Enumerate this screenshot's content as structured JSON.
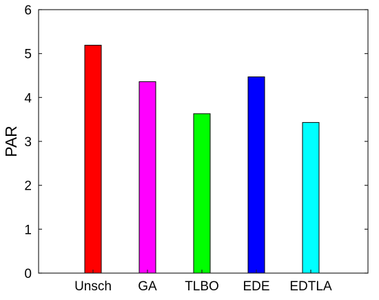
{
  "chart_data": {
    "type": "bar",
    "title": "",
    "xlabel": "",
    "ylabel": "PAR",
    "ylim": [
      0,
      6
    ],
    "yticks": [
      0,
      1,
      2,
      3,
      4,
      5,
      6
    ],
    "grid": false,
    "categories": [
      "Unsch",
      "GA",
      "TLBO",
      "EDE",
      "EDTLA"
    ],
    "values": [
      5.19,
      4.36,
      3.63,
      4.47,
      3.43
    ],
    "colors": [
      "#ff0000",
      "#ff00ff",
      "#00ff00",
      "#0000ff",
      "#00ffff"
    ]
  }
}
